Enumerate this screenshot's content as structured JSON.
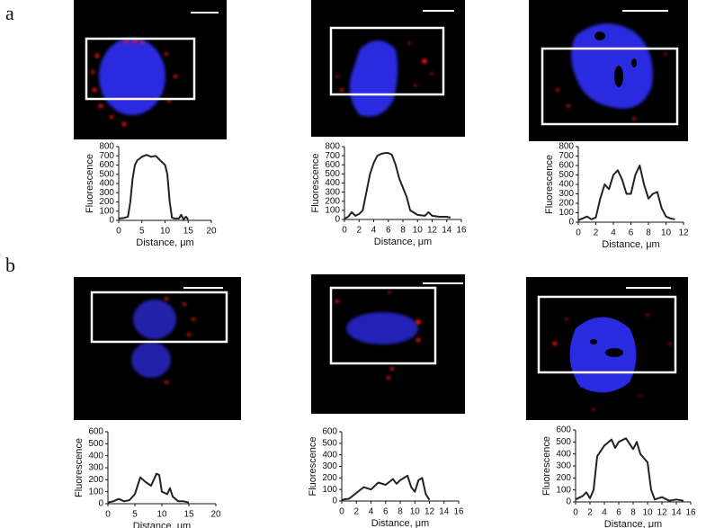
{
  "panels": [
    {
      "label": "a"
    },
    {
      "label": "b"
    }
  ],
  "chart_data": [
    {
      "type": "line",
      "x_label": "Distance, μm",
      "y_label": "Fluorescence",
      "x": [
        0,
        1,
        2,
        2.5,
        3,
        3.5,
        4,
        5,
        6,
        7,
        8,
        9,
        10,
        10.5,
        11,
        11.5,
        12,
        13,
        13.5,
        14,
        14.5,
        15
      ],
      "values": [
        20,
        25,
        40,
        200,
        450,
        600,
        650,
        690,
        710,
        690,
        700,
        650,
        600,
        500,
        200,
        30,
        20,
        20,
        60,
        10,
        40,
        10
      ],
      "color": "#222222",
      "xlim": [
        0,
        20
      ],
      "xticks": [
        0,
        5,
        10,
        15,
        20
      ],
      "ylim": [
        0,
        800
      ],
      "yticks": [
        0,
        100,
        200,
        300,
        400,
        500,
        600,
        700,
        800
      ]
    },
    {
      "type": "line",
      "x_label": "Distance, μm",
      "y_label": "Fluorescence",
      "x": [
        0,
        0.5,
        1,
        1.5,
        2,
        2.5,
        3,
        3.5,
        4,
        4.5,
        5,
        5.5,
        6,
        6.5,
        7,
        7.5,
        8,
        8.5,
        9,
        10,
        11,
        11.5,
        12,
        13,
        14,
        14.5
      ],
      "values": [
        10,
        30,
        80,
        40,
        60,
        100,
        300,
        500,
        620,
        700,
        720,
        730,
        730,
        710,
        600,
        450,
        350,
        250,
        100,
        50,
        40,
        80,
        40,
        30,
        30,
        20
      ],
      "color": "#222222",
      "xlim": [
        0,
        16
      ],
      "xticks": [
        0,
        2,
        4,
        6,
        8,
        10,
        12,
        14,
        16
      ],
      "ylim": [
        0,
        800
      ],
      "yticks": [
        0,
        100,
        200,
        300,
        400,
        500,
        600,
        700,
        800
      ]
    },
    {
      "type": "line",
      "x_label": "Distance, μm",
      "y_label": "Fluorescence",
      "x": [
        0,
        0.5,
        1,
        1.5,
        2,
        2.5,
        3,
        3.5,
        4,
        4.5,
        5,
        5.5,
        6,
        6.5,
        7,
        7.5,
        8,
        8.5,
        9,
        9.5,
        10,
        10.5,
        11
      ],
      "values": [
        20,
        40,
        60,
        30,
        50,
        250,
        400,
        350,
        500,
        550,
        450,
        300,
        300,
        500,
        600,
        400,
        250,
        300,
        320,
        150,
        60,
        40,
        30
      ],
      "color": "#222222",
      "xlim": [
        0,
        12
      ],
      "xticks": [
        0,
        2,
        4,
        6,
        8,
        10,
        12
      ],
      "ylim": [
        0,
        800
      ],
      "yticks": [
        0,
        100,
        200,
        300,
        400,
        500,
        600,
        700,
        800
      ]
    },
    {
      "type": "line",
      "x_label": "Distance, μm",
      "y_label": "Fluorescence",
      "x": [
        0,
        1,
        2,
        3,
        4,
        5,
        6,
        7,
        8,
        9,
        9.5,
        10,
        11,
        11.5,
        12,
        13,
        14,
        15
      ],
      "values": [
        10,
        20,
        40,
        20,
        30,
        80,
        220,
        180,
        150,
        250,
        240,
        100,
        80,
        130,
        60,
        20,
        20,
        10
      ],
      "color": "#222222",
      "xlim": [
        0,
        20
      ],
      "xticks": [
        0,
        5,
        10,
        15,
        20
      ],
      "ylim": [
        0,
        600
      ],
      "yticks": [
        0,
        100,
        200,
        300,
        400,
        500,
        600
      ]
    },
    {
      "type": "line",
      "x_label": "Distance, μm",
      "y_label": "Fluorescence",
      "x": [
        0,
        1,
        2,
        3,
        4,
        5,
        6,
        7,
        7.5,
        8,
        9,
        9.5,
        10,
        10.5,
        11,
        11.5,
        12
      ],
      "values": [
        10,
        20,
        70,
        120,
        100,
        160,
        140,
        190,
        150,
        180,
        220,
        120,
        80,
        180,
        200,
        60,
        10
      ],
      "color": "#222222",
      "xlim": [
        0,
        16
      ],
      "xticks": [
        0,
        2,
        4,
        6,
        8,
        10,
        12,
        14,
        16
      ],
      "ylim": [
        0,
        600
      ],
      "yticks": [
        0,
        100,
        200,
        300,
        400,
        500,
        600
      ]
    },
    {
      "type": "line",
      "x_label": "Distance, μm",
      "y_label": "Fluorescence",
      "x": [
        0,
        1,
        1.5,
        2,
        2.5,
        3,
        4,
        5,
        5.5,
        6,
        7,
        8,
        8.5,
        9,
        10,
        10.5,
        11,
        12,
        13,
        14,
        15
      ],
      "values": [
        20,
        50,
        80,
        30,
        100,
        380,
        470,
        520,
        450,
        500,
        530,
        440,
        500,
        400,
        330,
        100,
        20,
        40,
        10,
        20,
        10
      ],
      "color": "#222222",
      "xlim": [
        0,
        16
      ],
      "xticks": [
        0,
        2,
        4,
        6,
        8,
        10,
        12,
        14,
        16
      ],
      "ylim": [
        0,
        600
      ],
      "yticks": [
        0,
        100,
        200,
        300,
        400,
        500,
        600
      ]
    }
  ]
}
